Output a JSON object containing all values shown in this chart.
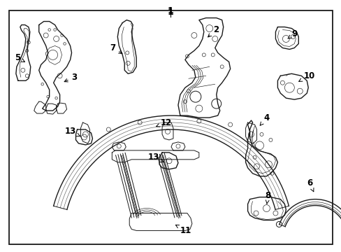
{
  "background_color": "#ffffff",
  "border_color": "#1a1a1a",
  "line_color": "#1a1a1a",
  "fig_width": 4.89,
  "fig_height": 3.6,
  "dpi": 100,
  "title": "1",
  "lw_thick": 1.0,
  "lw_med": 0.7,
  "lw_thin": 0.45
}
